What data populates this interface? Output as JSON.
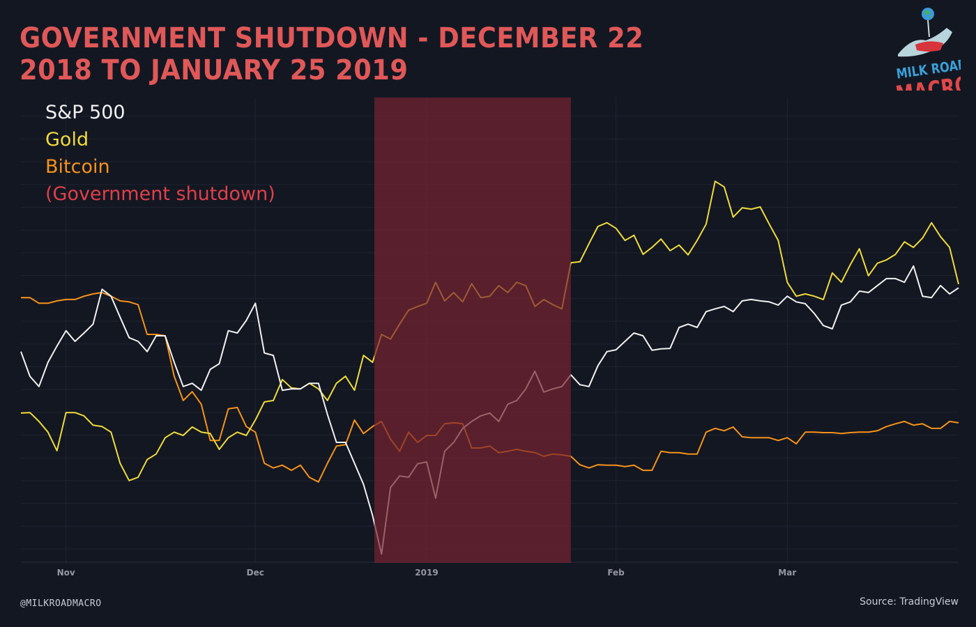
{
  "title": "GOVERNMENT SHUTDOWN - DECEMBER 22 2018 TO JANUARY 25 2019",
  "footer": {
    "handle": "@MILKROADMACRO",
    "source": "Source: TradingView"
  },
  "logo": {
    "line1": "MILK ROAD",
    "line2": "MACRO",
    "colors": {
      "milk_road": "#3aa0d8",
      "macro": "#e04848"
    }
  },
  "colors": {
    "background": "#131722",
    "grid": "#1f2430",
    "sp500": "#f2f2f2",
    "gold": "#f0dc3c",
    "bitcoin": "#f7931a",
    "shutdown": "#e0404a",
    "shutdown_fill": "rgba(120,36,48,0.7)"
  },
  "chart_data": {
    "type": "line",
    "title": "GOVERNMENT SHUTDOWN - DECEMBER 22 2018 TO JANUARY 25 2019",
    "xlabel": "",
    "ylabel": "",
    "y_axis_labels_shown": false,
    "ylim": [
      0,
      100
    ],
    "grid": true,
    "legend_placement": "top-left",
    "x_ticks": [
      {
        "label": "Nov",
        "date": "2018-11-01"
      },
      {
        "label": "Dec",
        "date": "2018-12-03"
      },
      {
        "label": "2019",
        "date": "2019-01-02"
      },
      {
        "label": "Feb",
        "date": "2019-02-01"
      },
      {
        "label": "Mar",
        "date": "2019-03-01"
      }
    ],
    "shaded_region": {
      "label": "(Government shutdown)",
      "start": "2018-12-22",
      "end": "2019-01-25"
    },
    "dates": [
      "2018-10-25",
      "2018-10-26",
      "2018-10-29",
      "2018-10-30",
      "2018-10-31",
      "2018-11-01",
      "2018-11-02",
      "2018-11-05",
      "2018-11-06",
      "2018-11-07",
      "2018-11-08",
      "2018-11-09",
      "2018-11-12",
      "2018-11-13",
      "2018-11-14",
      "2018-11-15",
      "2018-11-16",
      "2018-11-19",
      "2018-11-20",
      "2018-11-21",
      "2018-11-23",
      "2018-11-26",
      "2018-11-27",
      "2018-11-28",
      "2018-11-29",
      "2018-11-30",
      "2018-12-03",
      "2018-12-04",
      "2018-12-06",
      "2018-12-07",
      "2018-12-10",
      "2018-12-11",
      "2018-12-12",
      "2018-12-13",
      "2018-12-14",
      "2018-12-17",
      "2018-12-18",
      "2018-12-19",
      "2018-12-20",
      "2018-12-21",
      "2018-12-24",
      "2018-12-26",
      "2018-12-27",
      "2018-12-28",
      "2018-12-31",
      "2019-01-02",
      "2019-01-03",
      "2019-01-04",
      "2019-01-07",
      "2019-01-08",
      "2019-01-09",
      "2019-01-10",
      "2019-01-11",
      "2019-01-14",
      "2019-01-15",
      "2019-01-16",
      "2019-01-17",
      "2019-01-18",
      "2019-01-22",
      "2019-01-23",
      "2019-01-24",
      "2019-01-25",
      "2019-01-28",
      "2019-01-29",
      "2019-01-30",
      "2019-01-31",
      "2019-02-01",
      "2019-02-04",
      "2019-02-05",
      "2019-02-06",
      "2019-02-07",
      "2019-02-08",
      "2019-02-11",
      "2019-02-12",
      "2019-02-13",
      "2019-02-14",
      "2019-02-15",
      "2019-02-19",
      "2019-02-20",
      "2019-02-21",
      "2019-02-22",
      "2019-02-25",
      "2019-02-26",
      "2019-02-27",
      "2019-02-28",
      "2019-03-01",
      "2019-03-04",
      "2019-03-05",
      "2019-03-06",
      "2019-03-07",
      "2019-03-08",
      "2019-03-11",
      "2019-03-12",
      "2019-03-13",
      "2019-03-14",
      "2019-03-15",
      "2019-03-18",
      "2019-03-19",
      "2019-03-20",
      "2019-03-21",
      "2019-03-22",
      "2019-03-25",
      "2019-03-26",
      "2019-03-27",
      "2019-03-28"
    ],
    "series": [
      {
        "name": "S&P 500",
        "color": "#f2f2f2",
        "values": [
          45.4,
          40.1,
          37.9,
          43.1,
          46.6,
          49.9,
          47.6,
          49.4,
          51.3,
          58.8,
          57.3,
          52.8,
          48.4,
          47.6,
          45.4,
          48.8,
          48.8,
          43.1,
          37.9,
          38.6,
          37.1,
          41.6,
          42.8,
          49.9,
          49.4,
          52.1,
          55.8,
          45.1,
          44.6,
          37.1,
          37.4,
          37.4,
          38.6,
          38.6,
          31.9,
          25.9,
          25.9,
          21.4,
          16.9,
          10.2,
          1.9,
          16.2,
          18.7,
          18.4,
          21.3,
          21.7,
          13.9,
          24.0,
          25.9,
          28.9,
          30.4,
          31.6,
          32.2,
          30.4,
          34.1,
          34.9,
          37.4,
          41.2,
          36.7,
          37.4,
          37.9,
          40.4,
          38.3,
          37.9,
          42.4,
          45.4,
          45.8,
          47.6,
          49.4,
          48.8,
          45.7,
          46.0,
          46.1,
          50.6,
          51.3,
          50.6,
          54.0,
          54.6,
          55.1,
          54.0,
          56.3,
          56.6,
          56.3,
          56.1,
          55.4,
          57.3,
          56.1,
          55.7,
          53.6,
          51.0,
          50.3,
          55.4,
          56.1,
          58.4,
          58.1,
          59.6,
          61.1,
          61.1,
          60.3,
          63.8,
          57.3,
          57.0,
          59.6,
          57.8,
          59.1
        ]
      },
      {
        "name": "Gold",
        "color": "#f0dc3c",
        "values": [
          32.2,
          32.3,
          30.4,
          28.1,
          24.1,
          32.3,
          32.3,
          31.6,
          29.6,
          29.3,
          28.1,
          21.4,
          17.7,
          18.4,
          22.2,
          23.4,
          26.9,
          28.1,
          27.4,
          29.2,
          28.1,
          27.8,
          24.4,
          26.9,
          28.1,
          27.4,
          30.7,
          34.6,
          34.9,
          39.4,
          37.6,
          37.4,
          38.6,
          37.4,
          34.9,
          38.6,
          40.1,
          37.1,
          44.6,
          43.1,
          49.1,
          48.1,
          51.3,
          54.3,
          55.1,
          55.8,
          60.3,
          56.3,
          58.1,
          56.1,
          60.0,
          57.0,
          57.3,
          59.6,
          58.1,
          60.3,
          59.6,
          55.1,
          56.6,
          55.5,
          54.6,
          64.5,
          64.7,
          68.6,
          72.3,
          73.1,
          71.9,
          69.3,
          70.4,
          66.3,
          67.8,
          69.6,
          67.1,
          68.3,
          66.2,
          69.3,
          72.8,
          82.0,
          80.8,
          74.3,
          76.3,
          76.0,
          76.5,
          72.8,
          69.3,
          60.3,
          57.3,
          57.8,
          57.3,
          56.6,
          62.3,
          60.3,
          64.1,
          67.5,
          61.7,
          64.4,
          65.1,
          66.3,
          69.0,
          67.8,
          69.8,
          73.1,
          70.1,
          67.8,
          59.9
        ]
      },
      {
        "name": "Bitcoin",
        "color": "#f7931a",
        "values": [
          57.0,
          57.0,
          55.8,
          55.8,
          56.3,
          56.6,
          56.6,
          57.3,
          57.8,
          58.1,
          57.3,
          56.3,
          56.1,
          55.5,
          49.1,
          49.1,
          48.8,
          40.1,
          34.9,
          36.8,
          34.1,
          26.3,
          26.3,
          33.1,
          33.4,
          29.3,
          28.1,
          21.4,
          20.4,
          21.0,
          19.9,
          21.0,
          18.4,
          17.4,
          21.4,
          25.1,
          25.4,
          30.7,
          27.8,
          29.3,
          30.4,
          26.6,
          24.0,
          28.1,
          25.9,
          27.4,
          27.4,
          29.9,
          30.1,
          29.9,
          24.7,
          24.7,
          25.1,
          23.7,
          24.0,
          24.4,
          24.0,
          23.7,
          22.9,
          23.4,
          23.2,
          22.9,
          21.1,
          20.4,
          21.1,
          21.0,
          21.0,
          20.7,
          21.0,
          19.9,
          19.9,
          24.0,
          23.7,
          23.7,
          23.4,
          23.4,
          28.1,
          28.9,
          28.4,
          29.2,
          27.1,
          26.9,
          26.9,
          26.9,
          26.3,
          26.9,
          25.6,
          28.1,
          28.1,
          28.0,
          28.0,
          27.8,
          28.0,
          28.1,
          28.1,
          28.4,
          29.3,
          29.9,
          30.4,
          29.6,
          29.9,
          28.9,
          28.9,
          30.4,
          30.1
        ]
      }
    ]
  }
}
